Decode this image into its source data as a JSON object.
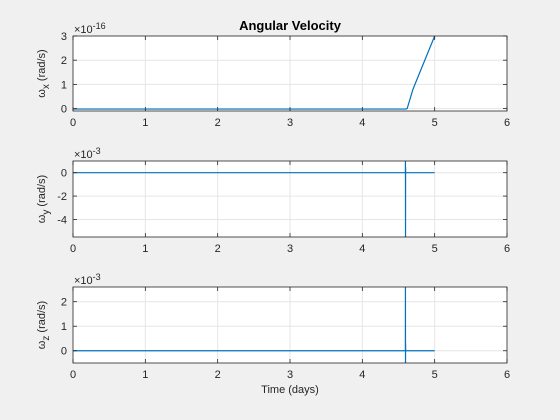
{
  "figure": {
    "background": "#f0f0f0",
    "axes_background": "#ffffff",
    "line_color": "#0072bd",
    "grid_color": "#e6e6e6"
  },
  "chart_data": [
    {
      "type": "line",
      "title": "Angular Velocity",
      "ylabel": "ω",
      "ylabel_sub": "x",
      "ylabel_unit": "(rad/s)",
      "xlabel": "",
      "exponent_label": "×10",
      "exponent_power": "-16",
      "xlim": [
        0,
        6
      ],
      "ylim": [
        -0.1,
        3
      ],
      "xticks": [
        0,
        1,
        2,
        3,
        4,
        5,
        6
      ],
      "xtick_labels": [
        "0",
        "1",
        "2",
        "3",
        "4",
        "5",
        "6"
      ],
      "yticks": [
        0,
        1,
        2,
        3
      ],
      "ytick_labels": [
        "0",
        "1",
        "2",
        "3"
      ],
      "grid": true,
      "series": [
        {
          "x": [
            0,
            4.6,
            4.62,
            4.7,
            5.0
          ],
          "y": [
            -0.02,
            -0.02,
            0.0,
            0.8,
            3.0
          ]
        }
      ]
    },
    {
      "type": "line",
      "title": "",
      "ylabel": "ω",
      "ylabel_sub": "y",
      "ylabel_unit": "(rad/s)",
      "xlabel": "",
      "exponent_label": "×10",
      "exponent_power": "-3",
      "xlim": [
        0,
        6
      ],
      "ylim": [
        -5.5,
        1
      ],
      "xticks": [
        0,
        1,
        2,
        3,
        4,
        5,
        6
      ],
      "xtick_labels": [
        "0",
        "1",
        "2",
        "3",
        "4",
        "5",
        "6"
      ],
      "yticks": [
        -4,
        -2,
        0
      ],
      "ytick_labels": [
        "-4",
        "-2",
        "0"
      ],
      "grid": true,
      "series": [
        {
          "x": [
            0,
            4.595,
            4.596,
            4.597,
            4.598,
            4.599,
            5.0
          ],
          "y": [
            0,
            0,
            1.0,
            -5.5,
            0.5,
            0,
            0
          ]
        }
      ]
    },
    {
      "type": "line",
      "title": "",
      "ylabel": "ω",
      "ylabel_sub": "z",
      "ylabel_unit": "(rad/s)",
      "xlabel": "Time (days)",
      "exponent_label": "×10",
      "exponent_power": "-3",
      "xlim": [
        0,
        6
      ],
      "ylim": [
        -0.5,
        2.6
      ],
      "xticks": [
        0,
        1,
        2,
        3,
        4,
        5,
        6
      ],
      "xtick_labels": [
        "0",
        "1",
        "2",
        "3",
        "4",
        "5",
        "6"
      ],
      "yticks": [
        0,
        1,
        2
      ],
      "ytick_labels": [
        "0",
        "1",
        "2"
      ],
      "grid": true,
      "series": [
        {
          "x": [
            0,
            4.595,
            4.596,
            4.597,
            4.598,
            4.599,
            5.0
          ],
          "y": [
            0,
            0,
            2.6,
            -0.5,
            0.3,
            0,
            0
          ]
        }
      ]
    }
  ]
}
